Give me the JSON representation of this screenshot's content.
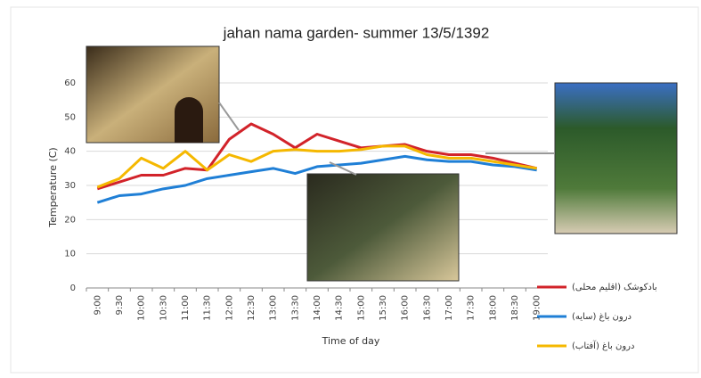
{
  "chart_data": {
    "type": "line",
    "title": "jahan nama garden-  summer 13/5/1392",
    "x_label": "Time of day",
    "y_label": "Temperature (C)",
    "categories": [
      "9:00",
      "9:30",
      "10:00",
      "10:30",
      "11:00",
      "11:30",
      "12:00",
      "12:30",
      "13:00",
      "13:30",
      "14:00",
      "14:30",
      "15:00",
      "15:30",
      "16:00",
      "16:30",
      "17:00",
      "17:30",
      "18:00",
      "18:30",
      "19:00"
    ],
    "series": [
      {
        "name": "بادکوشک (اقلیم محلی)",
        "color": "#d2232a",
        "values": [
          29,
          31,
          33,
          33,
          35,
          34.5,
          43.5,
          48,
          45,
          41,
          45,
          43,
          41,
          41.5,
          42,
          40,
          39,
          39,
          38,
          36.5,
          35
        ]
      },
      {
        "name": "درون باغ (سایه)",
        "color": "#1f7fd6",
        "values": [
          25,
          27,
          27.5,
          29,
          30,
          32,
          33,
          34,
          35,
          33.5,
          35.5,
          36,
          36.5,
          37.5,
          38.5,
          37.5,
          37,
          37,
          36,
          35.5,
          34.5
        ]
      },
      {
        "name": "درون باغ (آفتاب)",
        "color": "#f5b800",
        "values": [
          29.5,
          32,
          38,
          35,
          40,
          34.5,
          39,
          37,
          40,
          40.5,
          40,
          40,
          40.5,
          41.5,
          41.5,
          39,
          38,
          38,
          37,
          36,
          35
        ]
      }
    ],
    "ylim": [
      0,
      60
    ],
    "yticks": [
      0,
      10,
      20,
      30,
      40,
      50,
      60
    ],
    "grid": true
  }
}
